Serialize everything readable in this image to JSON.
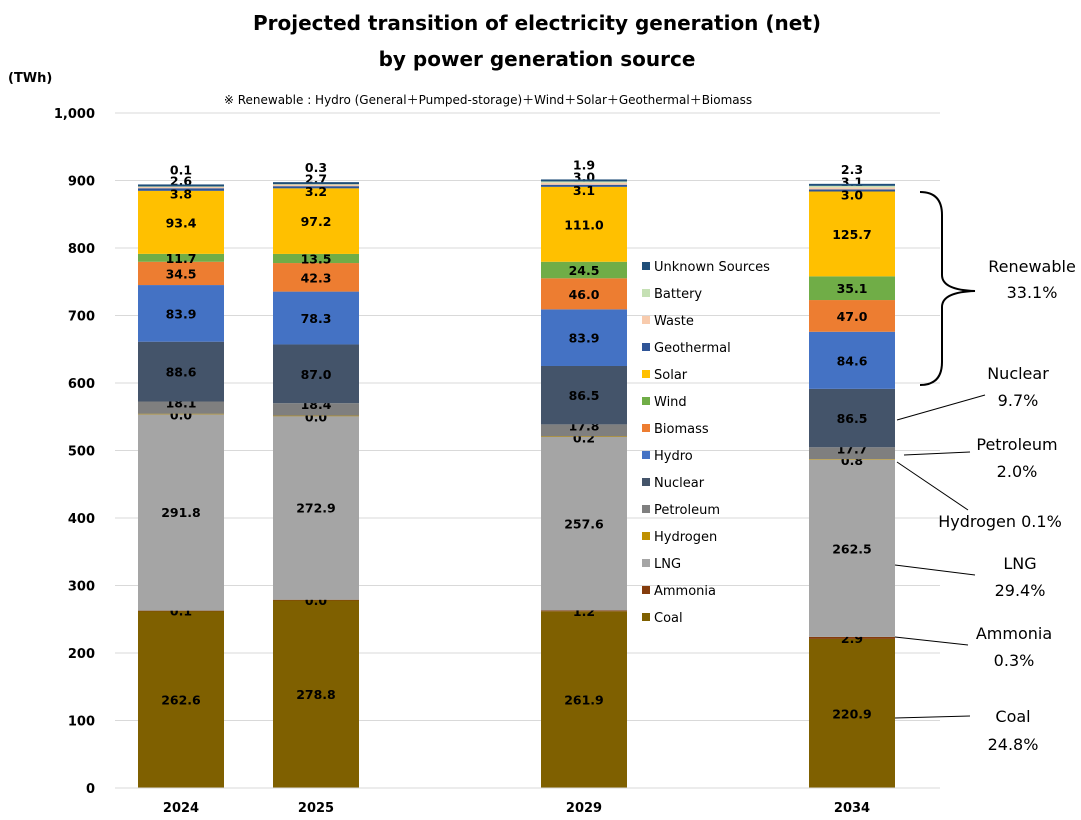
{
  "chart_data": {
    "type": "bar",
    "stacked": true,
    "title": "Projected transition of electricity generation (net)",
    "title_line2": "by power generation source",
    "unit": "(TWh)",
    "note": "※  Renewable : Hydro (General＋Pumped-storage)＋Wind＋Solar＋Geothermal＋Biomass",
    "ylim": [
      0,
      1000
    ],
    "yticks": [
      "0",
      "100",
      "200",
      "300",
      "400",
      "500",
      "600",
      "700",
      "800",
      "900",
      "1,000"
    ],
    "ytick_values": [
      0,
      100,
      200,
      300,
      400,
      500,
      600,
      700,
      800,
      900,
      1000
    ],
    "grid": true,
    "legend_placement": "center-right",
    "categories": [
      "2024",
      "2025",
      "2029",
      "2034"
    ],
    "series": [
      {
        "name": "Coal",
        "color": "#7f6000",
        "values": [
          262.6,
          278.8,
          261.9,
          220.9
        ],
        "labels": [
          "262.6",
          "278.8",
          "261.9",
          "220.9"
        ]
      },
      {
        "name": "Ammonia",
        "color": "#843c0c",
        "values": [
          0.1,
          0.0,
          1.2,
          2.9
        ],
        "labels": [
          "0.1",
          "0.0",
          "1.2",
          "2.9"
        ]
      },
      {
        "name": "LNG",
        "color": "#a5a5a5",
        "values": [
          291.8,
          272.9,
          257.6,
          262.5
        ],
        "labels": [
          "291.8",
          "272.9",
          "257.6",
          "262.5"
        ]
      },
      {
        "name": "Hydrogen",
        "color": "#bf9000",
        "values": [
          0.0,
          0.0,
          0.2,
          0.8
        ],
        "labels": [
          "0.0",
          "0.0",
          "0.2",
          "0.8"
        ]
      },
      {
        "name": "Petroleum",
        "color": "#7f7f7f",
        "values": [
          18.1,
          18.4,
          17.8,
          17.7
        ],
        "labels": [
          "18.1",
          "18.4",
          "17.8",
          "17.7"
        ]
      },
      {
        "name": "Nuclear",
        "color": "#44546a",
        "values": [
          88.6,
          87.0,
          86.5,
          86.5
        ],
        "labels": [
          "88.6",
          "87.0",
          "86.5",
          "86.5"
        ]
      },
      {
        "name": "Hydro",
        "color": "#4472c4",
        "values": [
          83.9,
          78.3,
          83.9,
          84.6
        ],
        "labels": [
          "83.9",
          "78.3",
          "83.9",
          "84.6"
        ]
      },
      {
        "name": "Biomass",
        "color": "#ed7d31",
        "values": [
          34.5,
          42.3,
          46.0,
          47.0
        ],
        "labels": [
          "34.5",
          "42.3",
          "46.0",
          "47.0"
        ]
      },
      {
        "name": "Wind",
        "color": "#70ad47",
        "values": [
          11.7,
          13.5,
          24.5,
          35.1
        ],
        "labels": [
          "11.7",
          "13.5",
          "24.5",
          "35.1"
        ]
      },
      {
        "name": "Solar",
        "color": "#ffc000",
        "values": [
          93.4,
          97.2,
          111.0,
          125.7
        ],
        "labels": [
          "93.4",
          "97.2",
          "111.0",
          "125.7"
        ]
      },
      {
        "name": "Geothermal",
        "color": "#2f5597",
        "values": [
          3.8,
          3.2,
          3.1,
          3.0
        ],
        "labels": [
          "3.8",
          "3.2",
          "3.1",
          "3.0"
        ]
      },
      {
        "name": "Waste",
        "color": "#f8cbad",
        "values": [
          2.6,
          2.7,
          3.0,
          3.1
        ],
        "labels": [
          "2.6",
          "2.7",
          "3.0",
          "3.1"
        ]
      },
      {
        "name": "Battery",
        "color": "#c5e0b4",
        "values": [
          0.1,
          0.3,
          1.9,
          2.3
        ],
        "labels": [
          "0.1",
          "0.3",
          "1.9",
          "2.3"
        ]
      },
      {
        "name": "Unknown Sources",
        "color": "#1f4e79",
        "values": [
          null,
          null,
          null,
          null
        ],
        "labels": []
      }
    ],
    "annotations": [
      {
        "name": "Renewable",
        "share": "33.1%"
      },
      {
        "name": "Nuclear",
        "share": "9.7%"
      },
      {
        "name": "Petroleum",
        "share": "2.0%"
      },
      {
        "name": "Hydrogen",
        "share": "0.1%"
      },
      {
        "name": "LNG",
        "share": "29.4%"
      },
      {
        "name": "Ammonia",
        "share": "0.3%"
      },
      {
        "name": "Coal",
        "share": "24.8%"
      }
    ]
  }
}
